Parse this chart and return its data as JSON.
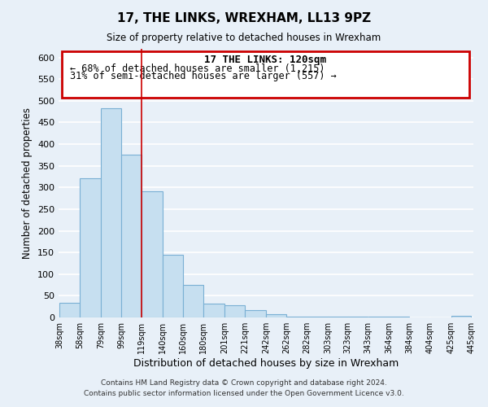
{
  "title": "17, THE LINKS, WREXHAM, LL13 9PZ",
  "subtitle": "Size of property relative to detached houses in Wrexham",
  "xlabel": "Distribution of detached houses by size in Wrexham",
  "ylabel": "Number of detached properties",
  "bar_color": "#c6dff0",
  "bar_edge_color": "#7ab0d4",
  "bar_left_edges": [
    38,
    58,
    79,
    99,
    119,
    140,
    160,
    180,
    201,
    221,
    242,
    262,
    282,
    303,
    323,
    343,
    364,
    384,
    404,
    425
  ],
  "bar_widths": [
    20,
    21,
    20,
    20,
    21,
    20,
    20,
    21,
    20,
    21,
    20,
    20,
    21,
    20,
    20,
    21,
    20,
    20,
    21,
    20
  ],
  "bar_heights": [
    33,
    322,
    483,
    375,
    291,
    145,
    75,
    32,
    29,
    17,
    7,
    2,
    1,
    1,
    1,
    1,
    1,
    0,
    0,
    3
  ],
  "xtick_labels": [
    "38sqm",
    "58sqm",
    "79sqm",
    "99sqm",
    "119sqm",
    "140sqm",
    "160sqm",
    "180sqm",
    "201sqm",
    "221sqm",
    "242sqm",
    "262sqm",
    "282sqm",
    "303sqm",
    "323sqm",
    "343sqm",
    "364sqm",
    "384sqm",
    "404sqm",
    "425sqm",
    "445sqm"
  ],
  "ylim": [
    0,
    620
  ],
  "yticks": [
    0,
    50,
    100,
    150,
    200,
    250,
    300,
    350,
    400,
    450,
    500,
    550,
    600
  ],
  "annotation_title": "17 THE LINKS: 120sqm",
  "annotation_line1": "← 68% of detached houses are smaller (1,215)",
  "annotation_line2": "31% of semi-detached houses are larger (557) →",
  "annotation_box_color": "#ffffff",
  "annotation_box_edge_color": "#cc0000",
  "vline_x": 119,
  "vline_color": "#cc0000",
  "footer_line1": "Contains HM Land Registry data © Crown copyright and database right 2024.",
  "footer_line2": "Contains public sector information licensed under the Open Government Licence v3.0.",
  "background_color": "#e8f0f8",
  "grid_color": "#ffffff"
}
